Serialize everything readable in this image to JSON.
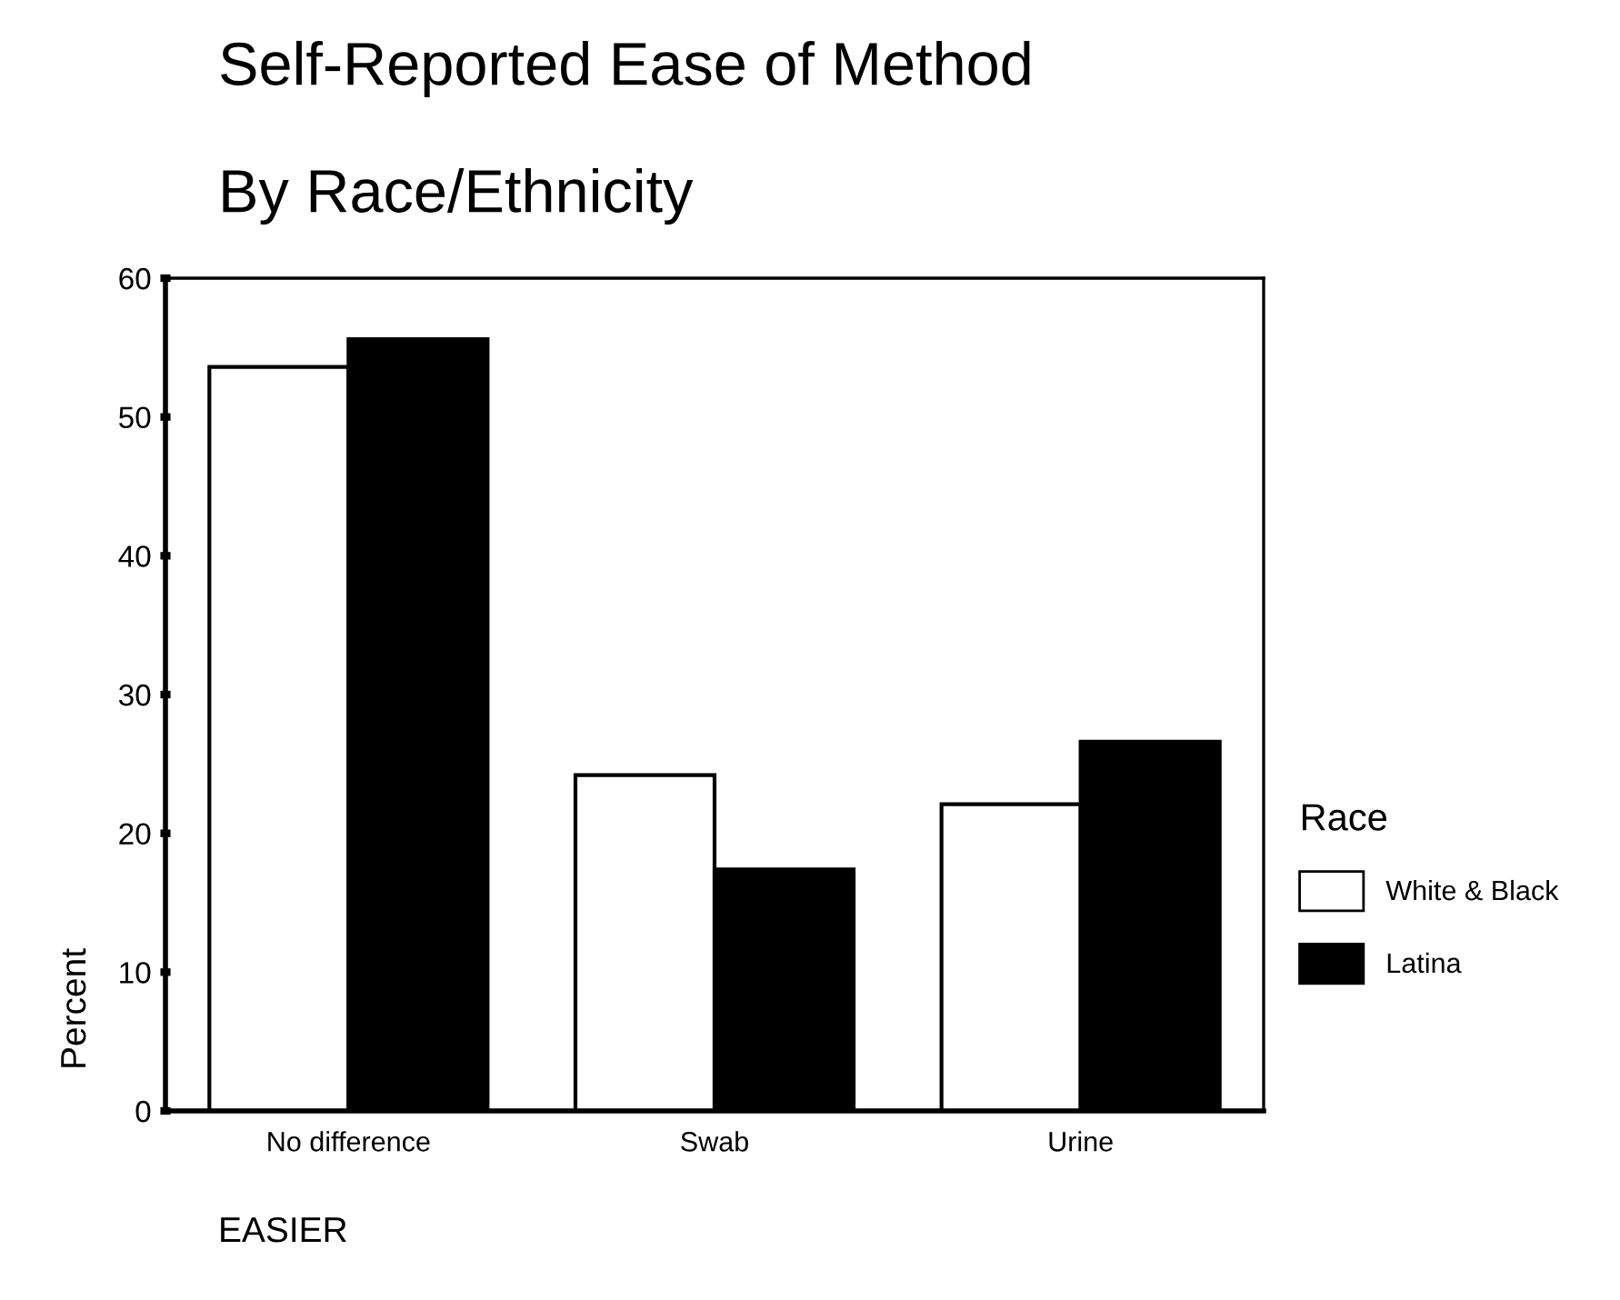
{
  "chart_data": {
    "type": "bar",
    "title": "Self-Reported Ease of Method",
    "subtitle": "By Race/Ethnicity",
    "xlabel": "EASIER",
    "ylabel": "Percent",
    "legend_title": "Race",
    "categories": [
      "No difference",
      "Swab",
      "Urine"
    ],
    "series": [
      {
        "name": "White & Black",
        "color": "#ffffff",
        "values": [
          53.6,
          24.2,
          22.1
        ]
      },
      {
        "name": "Latina",
        "color": "#000000",
        "values": [
          55.6,
          17.4,
          26.6
        ]
      }
    ],
    "ylim": [
      0,
      60
    ],
    "yticks": [
      0,
      10,
      20,
      30,
      40,
      50,
      60
    ],
    "grid": false,
    "legend": "right"
  }
}
